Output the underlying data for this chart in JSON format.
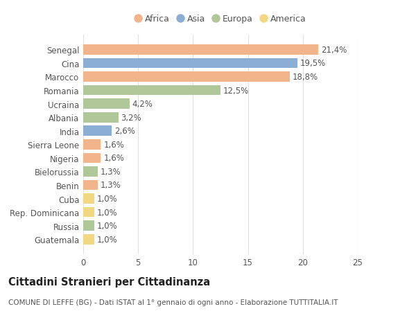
{
  "title": "Cittadini Stranieri per Cittadinanza",
  "subtitle": "COMUNE DI LEFFE (BG) - Dati ISTAT al 1° gennaio di ogni anno - Elaborazione TUTTITALIA.IT",
  "categories": [
    "Senegal",
    "Cina",
    "Marocco",
    "Romania",
    "Ucraina",
    "Albania",
    "India",
    "Sierra Leone",
    "Nigeria",
    "Bielorussia",
    "Benin",
    "Cuba",
    "Rep. Dominicana",
    "Russia",
    "Guatemala"
  ],
  "values": [
    21.4,
    19.5,
    18.8,
    12.5,
    4.2,
    3.2,
    2.6,
    1.6,
    1.6,
    1.3,
    1.3,
    1.0,
    1.0,
    1.0,
    1.0
  ],
  "labels": [
    "21,4%",
    "19,5%",
    "18,8%",
    "12,5%",
    "4,2%",
    "3,2%",
    "2,6%",
    "1,6%",
    "1,6%",
    "1,3%",
    "1,3%",
    "1,0%",
    "1,0%",
    "1,0%",
    "1,0%"
  ],
  "continents": [
    "Africa",
    "Asia",
    "Africa",
    "Europa",
    "Europa",
    "Europa",
    "Asia",
    "Africa",
    "Africa",
    "Europa",
    "Africa",
    "America",
    "America",
    "Europa",
    "America"
  ],
  "continent_colors": {
    "Africa": "#F2B48A",
    "Asia": "#8BAFD4",
    "Europa": "#B0C79A",
    "America": "#F2D882"
  },
  "legend_order": [
    "Africa",
    "Asia",
    "Europa",
    "America"
  ],
  "xlim": [
    0,
    25
  ],
  "xticks": [
    0,
    5,
    10,
    15,
    20,
    25
  ],
  "background_color": "#ffffff",
  "bar_height": 0.75,
  "label_fontsize": 8.5,
  "tick_fontsize": 8.5,
  "title_fontsize": 10.5,
  "subtitle_fontsize": 7.5,
  "grid_color": "#e0e0e0",
  "text_color": "#555555"
}
